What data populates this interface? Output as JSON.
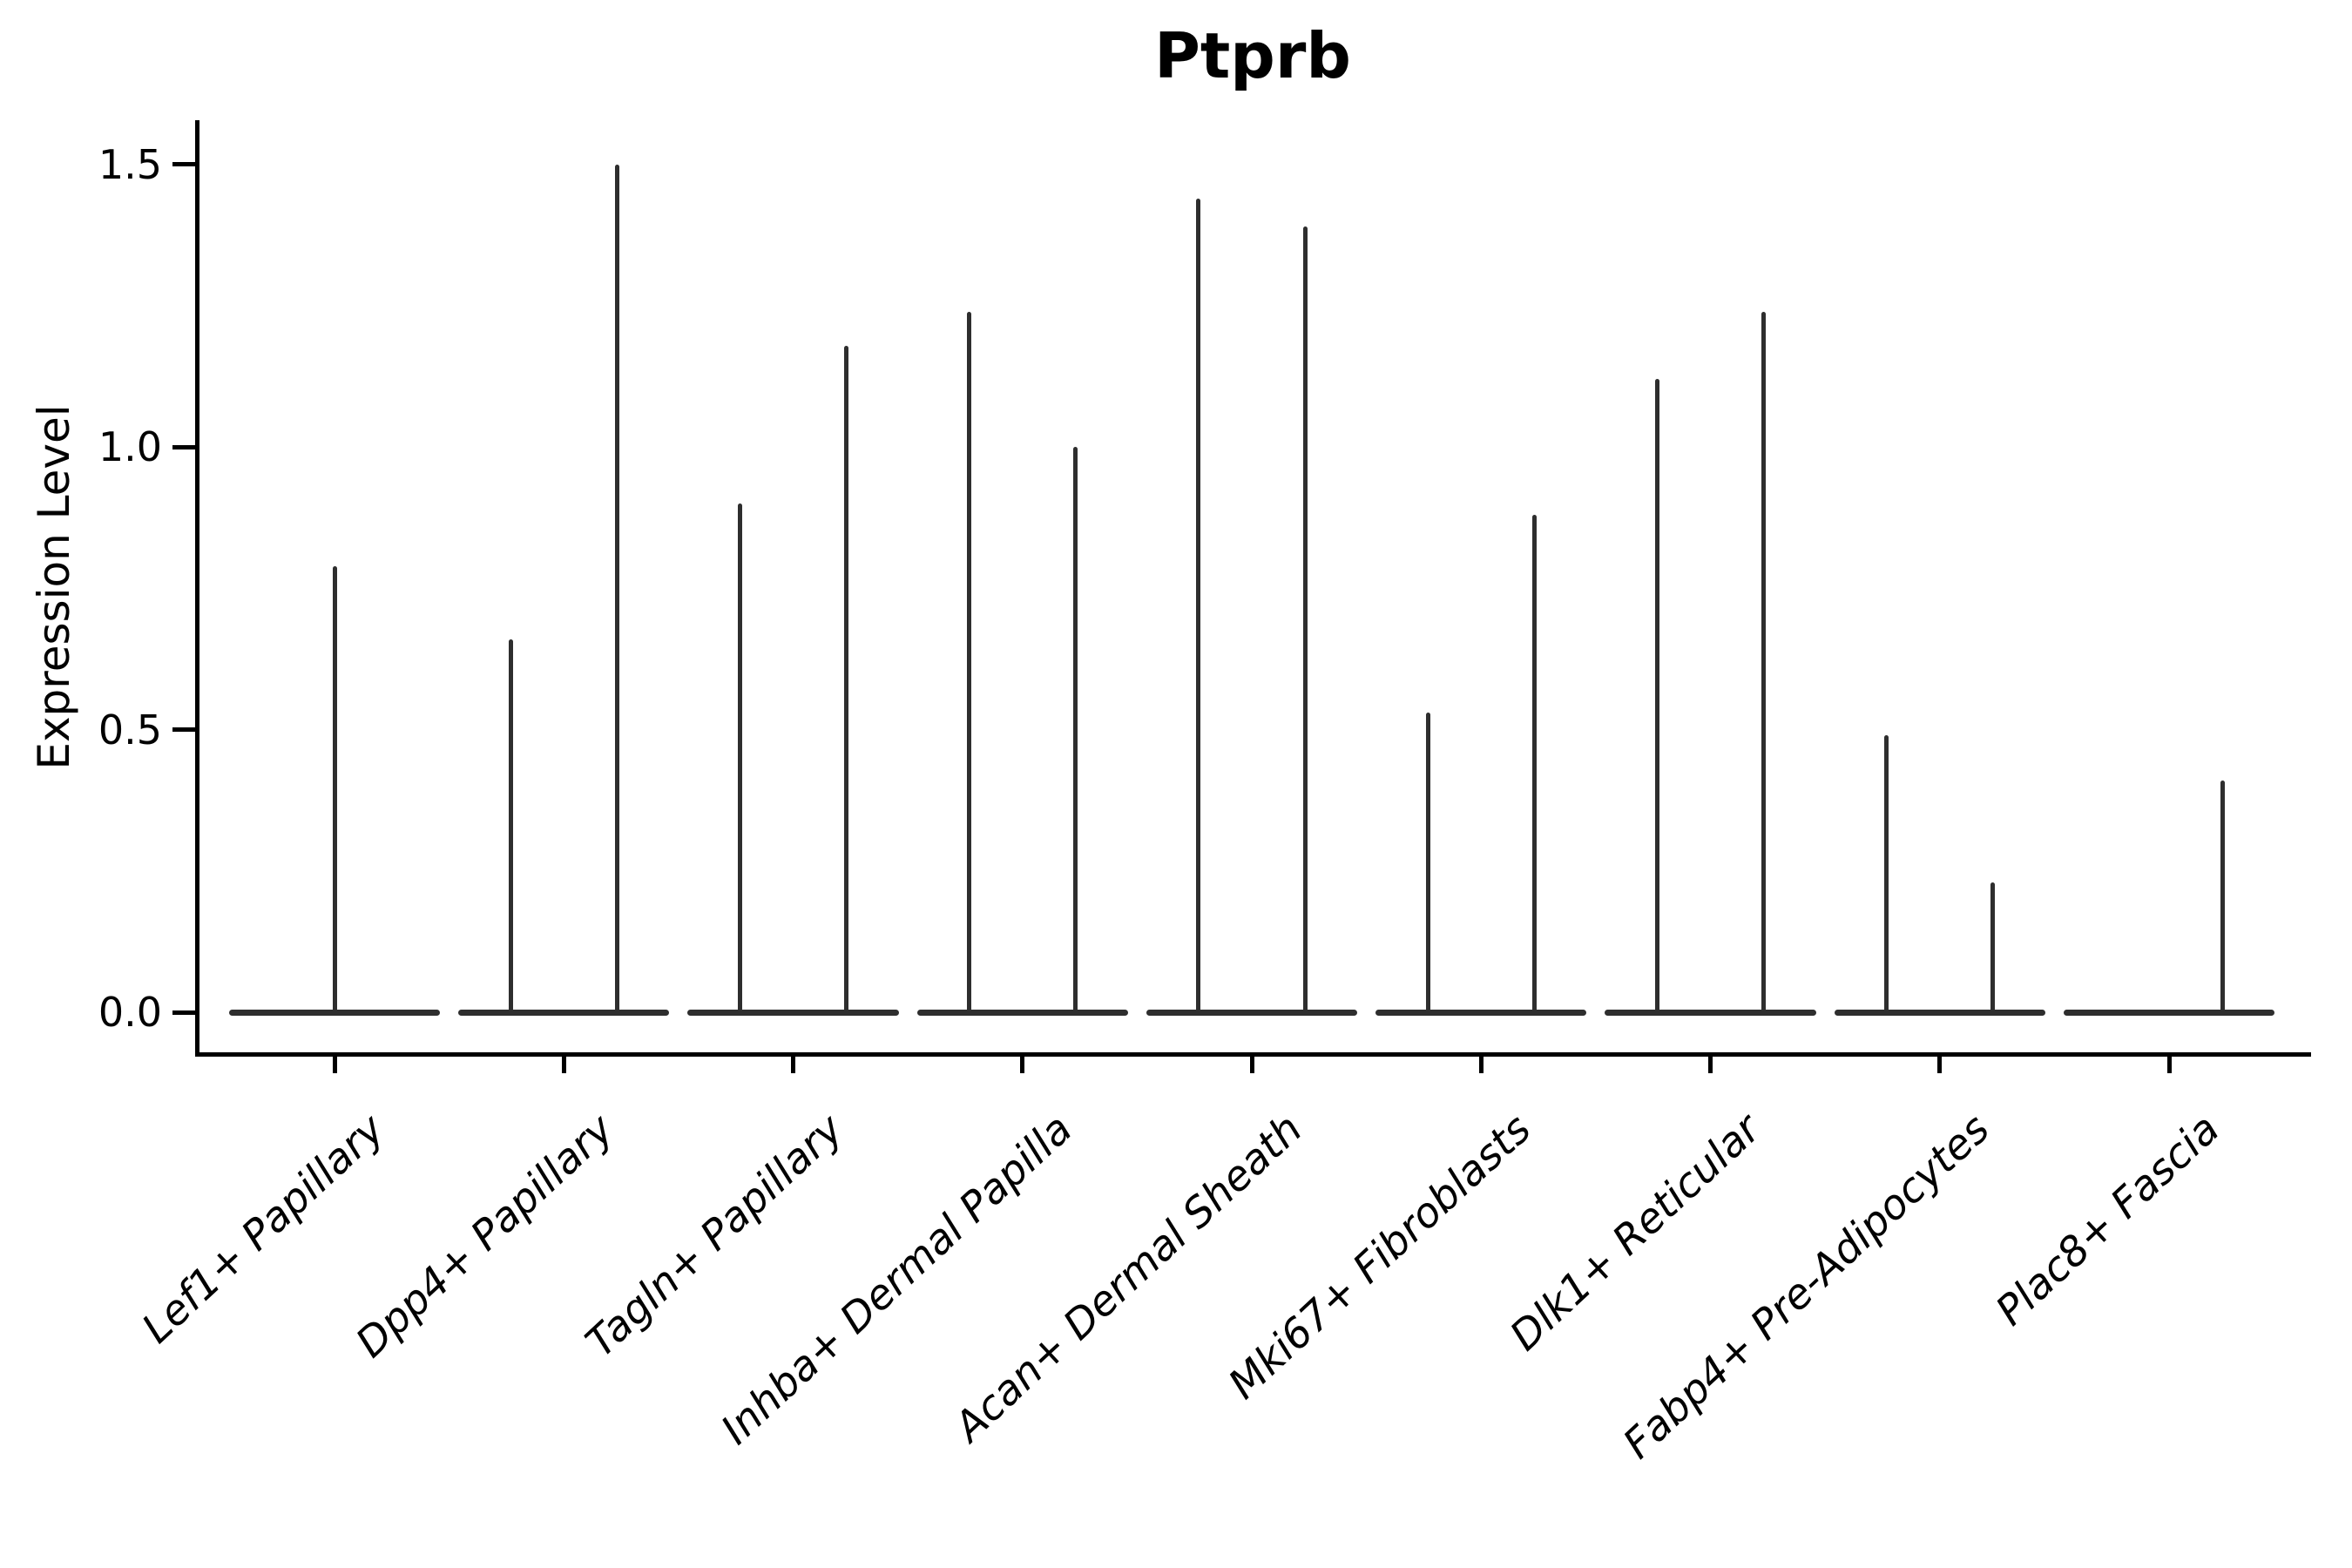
{
  "chart_data": {
    "type": "violin",
    "title": "Ptprb",
    "ylabel": "Expression Level",
    "xlabel": "",
    "ytick_labels": [
      "0.0",
      "0.5",
      "1.0",
      "1.5"
    ],
    "ytick_values": [
      0.0,
      0.5,
      1.0,
      1.5
    ],
    "ylim": [
      -0.072,
      1.578
    ],
    "grid": false,
    "legend": null,
    "background_color": "#ffffff",
    "ink_color": "#000000",
    "violin_color": "#2e2e2e",
    "violin_base_value": 0.0,
    "violin_base_halfwidth": 0.46,
    "categories": [
      {
        "label": "Lef1+ Papillary",
        "spikes": [
          {
            "offset": 0.0,
            "max": 0.79
          }
        ]
      },
      {
        "label": "Dpp4+ Papillary",
        "spikes": [
          {
            "offset": -0.232,
            "max": 0.66
          },
          {
            "offset": 0.232,
            "max": 1.5
          }
        ]
      },
      {
        "label": "Tagln+ Papillary",
        "spikes": [
          {
            "offset": -0.232,
            "max": 0.9
          },
          {
            "offset": 0.232,
            "max": 1.18
          }
        ]
      },
      {
        "label": "Inhba+ Dermal Papilla",
        "spikes": [
          {
            "offset": -0.232,
            "max": 1.24
          },
          {
            "offset": 0.232,
            "max": 1.0
          }
        ]
      },
      {
        "label": "Acan+ Dermal Sheath",
        "spikes": [
          {
            "offset": -0.232,
            "max": 1.44
          },
          {
            "offset": 0.232,
            "max": 1.39
          }
        ]
      },
      {
        "label": "Mki67+ Fibroblasts",
        "spikes": [
          {
            "offset": -0.232,
            "max": 0.53
          },
          {
            "offset": 0.232,
            "max": 0.88
          }
        ]
      },
      {
        "label": "Dlk1+ Reticular",
        "spikes": [
          {
            "offset": -0.232,
            "max": 1.12
          },
          {
            "offset": 0.232,
            "max": 1.24
          }
        ]
      },
      {
        "label": "Fabp4+ Pre-Adipocytes",
        "spikes": [
          {
            "offset": -0.232,
            "max": 0.49
          },
          {
            "offset": 0.232,
            "max": 0.23
          }
        ]
      },
      {
        "label": "Plac8+ Fascia",
        "spikes": [
          {
            "offset": 0.232,
            "max": 0.41
          }
        ]
      }
    ]
  }
}
